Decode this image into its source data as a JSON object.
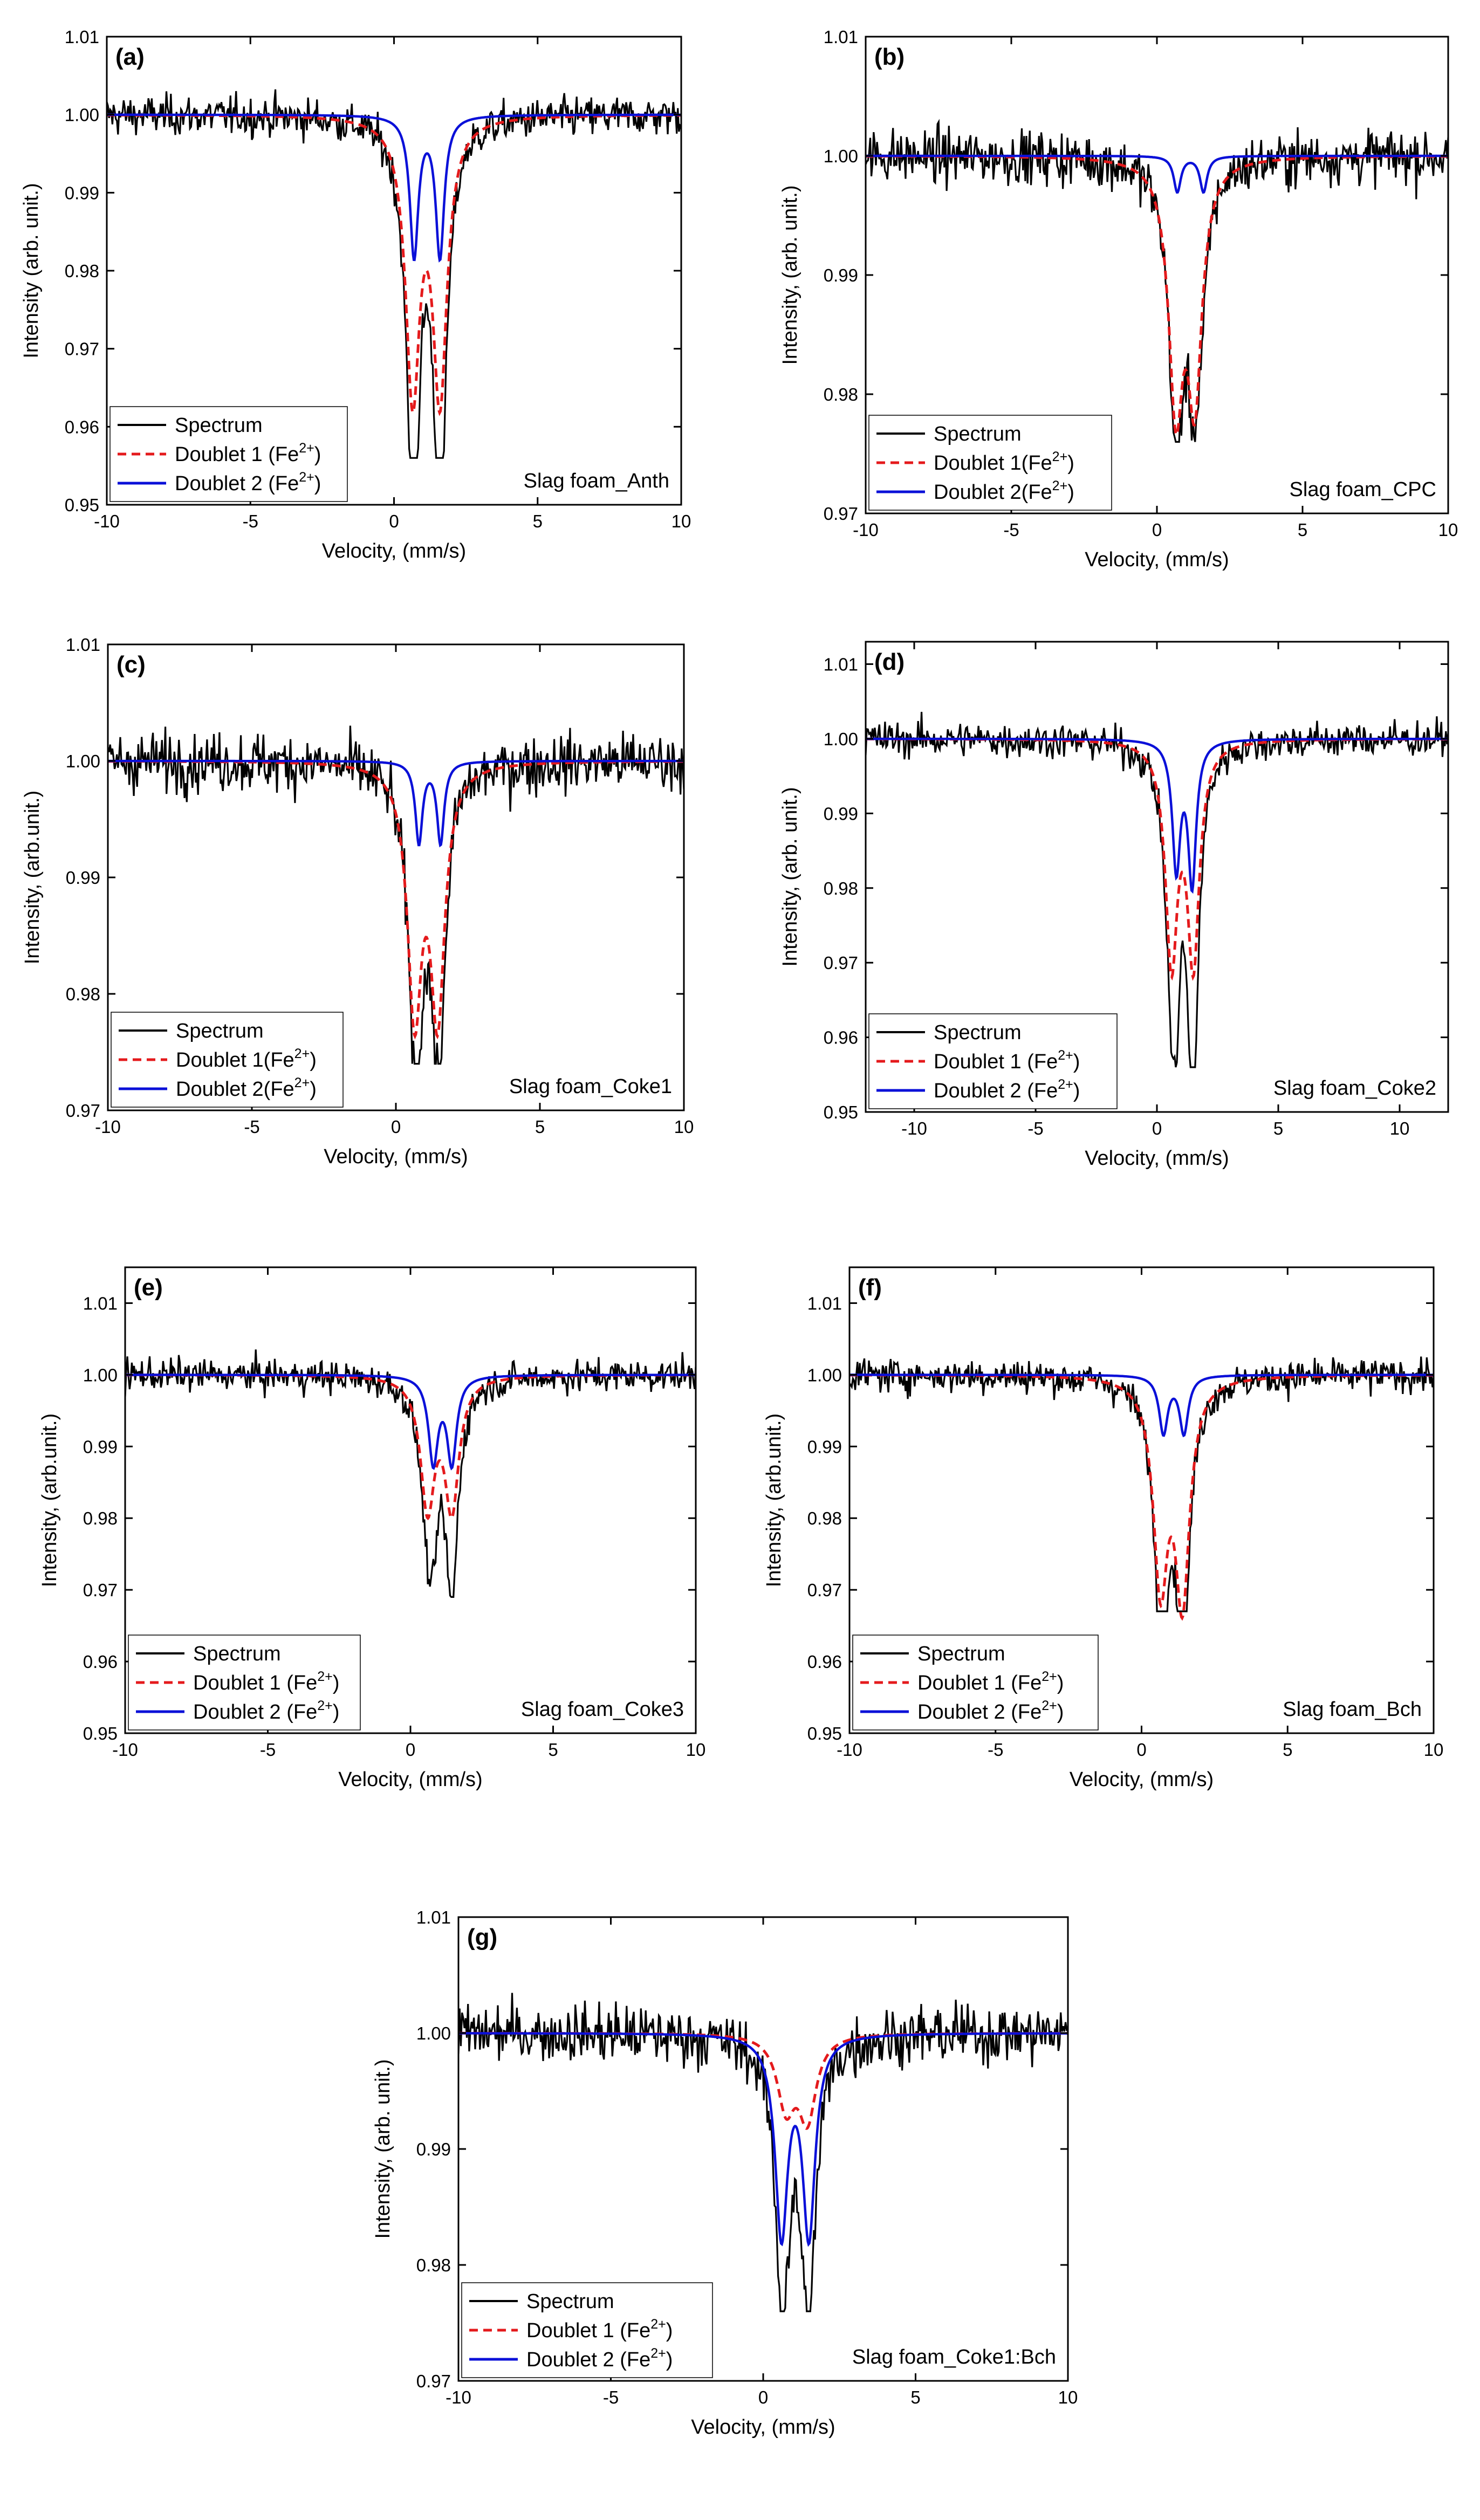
{
  "colors": {
    "spectrum": "#000000",
    "doublet1": "#e41a1c",
    "doublet2": "#0a10d8"
  },
  "chart_data": [
    {
      "panel": "(a)",
      "type": "line",
      "sample": "Slag foam_Anth",
      "xlabel": "Velocity, (mm/s)",
      "ylabel": "Intensity (arb. unit.)",
      "xlim": [
        -10,
        10
      ],
      "ylim": [
        0.95,
        1.01
      ],
      "xticks": [
        -10,
        -5,
        0,
        5,
        10
      ],
      "yticks": [
        0.95,
        0.96,
        0.97,
        0.98,
        0.99,
        1.0,
        1.01
      ],
      "ytick_labels": [
        "0.95",
        "0.96",
        "0.97",
        "0.98",
        "0.99",
        "1.00",
        "1.01"
      ],
      "legend": [
        {
          "key": "spectrum",
          "label": "Spectrum",
          "sup": ""
        },
        {
          "key": "doublet1",
          "label": "Doublet 1 (Fe",
          "sup": "2+",
          "tail": ")"
        },
        {
          "key": "doublet2",
          "label": "Doublet 2 (Fe",
          "sup": "2+",
          "tail": ")"
        }
      ],
      "series": [
        {
          "name": "Doublet 1 (Fe2+)",
          "lines": [
            {
              "center": 0.65,
              "depth": 0.035,
              "hwhm": 0.3
            },
            {
              "center": 1.6,
              "depth": 0.035,
              "hwhm": 0.3
            }
          ]
        },
        {
          "name": "Doublet 2 (Fe2+)",
          "lines": [
            {
              "center": 0.7,
              "depth": 0.018,
              "hwhm": 0.18
            },
            {
              "center": 1.6,
              "depth": 0.018,
              "hwhm": 0.18
            }
          ]
        },
        {
          "name": "Spectrum",
          "noise": 0.0018,
          "min_intensity": 0.956
        }
      ]
    },
    {
      "panel": "(b)",
      "type": "line",
      "sample": "Slag foam_CPC",
      "xlabel": "Velocity, (mm/s)",
      "ylabel": "Intensity, (arb. unit.)",
      "xlim": [
        -10,
        10
      ],
      "ylim": [
        0.97,
        1.01
      ],
      "xticks": [
        -10,
        -5,
        0,
        5,
        10
      ],
      "yticks": [
        0.97,
        0.98,
        0.99,
        1.0,
        1.01
      ],
      "ytick_labels": [
        "0.97",
        "0.98",
        "0.99",
        "1.00",
        "1.01"
      ],
      "legend": [
        {
          "key": "spectrum",
          "label": "Spectrum",
          "sup": ""
        },
        {
          "key": "doublet1",
          "label": "Doublet 1(Fe",
          "sup": "2+",
          "tail": ")"
        },
        {
          "key": "doublet2",
          "label": "Doublet 2(Fe",
          "sup": "2+",
          "tail": ")"
        }
      ],
      "series": [
        {
          "name": "Doublet 1 (Fe2+)",
          "lines": [
            {
              "center": 0.65,
              "depth": 0.02,
              "hwhm": 0.3
            },
            {
              "center": 1.3,
              "depth": 0.019,
              "hwhm": 0.3
            }
          ]
        },
        {
          "name": "Doublet 2 (Fe2+)",
          "lines": [
            {
              "center": 0.7,
              "depth": 0.003,
              "hwhm": 0.15
            },
            {
              "center": 1.6,
              "depth": 0.003,
              "hwhm": 0.15
            }
          ]
        },
        {
          "name": "Spectrum",
          "noise": 0.0016,
          "min_intensity": 0.976
        }
      ]
    },
    {
      "panel": "(c)",
      "type": "line",
      "sample": "Slag foam_Coke1",
      "xlabel": "Velocity, (mm/s)",
      "ylabel": "Intensity, (arb.unit.)",
      "xlim": [
        -10,
        10
      ],
      "ylim": [
        0.97,
        1.01
      ],
      "xticks": [
        -10,
        -5,
        0,
        5,
        10
      ],
      "yticks": [
        0.97,
        0.98,
        0.99,
        1.0,
        1.01
      ],
      "ytick_labels": [
        "0.97",
        "0.98",
        "0.99",
        "1.00",
        "1.01"
      ],
      "legend": [
        {
          "key": "spectrum",
          "label": "Spectrum",
          "sup": ""
        },
        {
          "key": "doublet1",
          "label": "Doublet 1(Fe",
          "sup": "2+",
          "tail": ")"
        },
        {
          "key": "doublet2",
          "label": "Doublet 2(Fe",
          "sup": "2+",
          "tail": ")"
        }
      ],
      "series": [
        {
          "name": "Doublet 1 (Fe2+)",
          "lines": [
            {
              "center": 0.65,
              "depth": 0.021,
              "hwhm": 0.3
            },
            {
              "center": 1.45,
              "depth": 0.021,
              "hwhm": 0.3
            }
          ]
        },
        {
          "name": "Doublet 2 (Fe2+)",
          "lines": [
            {
              "center": 0.8,
              "depth": 0.007,
              "hwhm": 0.15
            },
            {
              "center": 1.55,
              "depth": 0.007,
              "hwhm": 0.15
            }
          ]
        },
        {
          "name": "Spectrum",
          "noise": 0.0018,
          "min_intensity": 0.974
        }
      ]
    },
    {
      "panel": "(d)",
      "type": "line",
      "sample": "Slag foam_Coke2",
      "xlabel": "Velocity, (mm/s)",
      "ylabel": "Intensity, (arb. unit.)",
      "xlim": [
        -12,
        12
      ],
      "ylim": [
        0.95,
        1.013
      ],
      "xticks": [
        -10,
        -5,
        0,
        5,
        10
      ],
      "yticks": [
        0.95,
        0.96,
        0.97,
        0.98,
        0.99,
        1.0,
        1.01
      ],
      "ytick_labels": [
        "0.95",
        "0.96",
        "0.97",
        "0.98",
        "0.99",
        "1.00",
        "1.01"
      ],
      "legend": [
        {
          "key": "spectrum",
          "label": "Spectrum",
          "sup": ""
        },
        {
          "key": "doublet1",
          "label": "Doublet 1 (Fe",
          "sup": "2+",
          "tail": ")"
        },
        {
          "key": "doublet2",
          "label": "Doublet 2 (Fe",
          "sup": "2+",
          "tail": ")"
        }
      ],
      "series": [
        {
          "name": "Doublet 1 (Fe2+)",
          "lines": [
            {
              "center": 0.6,
              "depth": 0.029,
              "hwhm": 0.3
            },
            {
              "center": 1.5,
              "depth": 0.029,
              "hwhm": 0.3
            }
          ]
        },
        {
          "name": "Doublet 2 (Fe2+)",
          "lines": [
            {
              "center": 0.8,
              "depth": 0.017,
              "hwhm": 0.2
            },
            {
              "center": 1.45,
              "depth": 0.019,
              "hwhm": 0.2
            }
          ]
        },
        {
          "name": "Spectrum",
          "noise": 0.0017,
          "min_intensity": 0.956
        }
      ]
    },
    {
      "panel": "(e)",
      "type": "line",
      "sample": "Slag foam_Coke3",
      "xlabel": "Velocity, (mm/s)",
      "ylabel": "Intensity, (arb.unit.)",
      "xlim": [
        -10,
        10
      ],
      "ylim": [
        0.95,
        1.015
      ],
      "xticks": [
        -10,
        -5,
        0,
        5,
        10
      ],
      "yticks": [
        0.95,
        0.96,
        0.97,
        0.98,
        0.99,
        1.0,
        1.01
      ],
      "ytick_labels": [
        "0.95",
        "0.96",
        "0.97",
        "0.98",
        "0.99",
        "1.00",
        "1.01"
      ],
      "legend": [
        {
          "key": "spectrum",
          "label": "Spectrum",
          "sup": ""
        },
        {
          "key": "doublet1",
          "label": "Doublet 1 (Fe",
          "sup": "2+",
          "tail": ")"
        },
        {
          "key": "doublet2",
          "label": "Doublet 2 (Fe",
          "sup": "2+",
          "tail": ")"
        }
      ],
      "series": [
        {
          "name": "Doublet 1 (Fe2+)",
          "lines": [
            {
              "center": 0.6,
              "depth": 0.018,
              "hwhm": 0.3
            },
            {
              "center": 1.45,
              "depth": 0.018,
              "hwhm": 0.3
            }
          ]
        },
        {
          "name": "Doublet 2 (Fe2+)",
          "lines": [
            {
              "center": 0.8,
              "depth": 0.012,
              "hwhm": 0.2
            },
            {
              "center": 1.45,
              "depth": 0.012,
              "hwhm": 0.2
            }
          ]
        },
        {
          "name": "Spectrum",
          "noise": 0.0016,
          "min_intensity": 0.969
        }
      ]
    },
    {
      "panel": "(f)",
      "type": "line",
      "sample": "Slag foam_Bch",
      "xlabel": "Velocity, (mm/s)",
      "ylabel": "Intensity, (arb.unit.)",
      "xlim": [
        -10,
        10
      ],
      "ylim": [
        0.95,
        1.015
      ],
      "xticks": [
        -10,
        -5,
        0,
        5,
        10
      ],
      "yticks": [
        0.95,
        0.96,
        0.97,
        0.98,
        0.99,
        1.0,
        1.01
      ],
      "ytick_labels": [
        "0.95",
        "0.96",
        "0.97",
        "0.98",
        "0.99",
        "1.00",
        "1.01"
      ],
      "legend": [
        {
          "key": "spectrum",
          "label": "Spectrum",
          "sup": ""
        },
        {
          "key": "doublet1",
          "label": "Doublet 1 (Fe",
          "sup": "2+",
          "tail": ")"
        },
        {
          "key": "doublet2",
          "label": "Doublet 2 (Fe",
          "sup": "2+",
          "tail": ")"
        }
      ],
      "series": [
        {
          "name": "Doublet 1 (Fe2+)",
          "lines": [
            {
              "center": 0.65,
              "depth": 0.028,
              "hwhm": 0.3
            },
            {
              "center": 1.4,
              "depth": 0.03,
              "hwhm": 0.3
            }
          ]
        },
        {
          "name": "Doublet 2 (Fe2+)",
          "lines": [
            {
              "center": 0.75,
              "depth": 0.008,
              "hwhm": 0.18
            },
            {
              "center": 1.45,
              "depth": 0.008,
              "hwhm": 0.18
            }
          ]
        },
        {
          "name": "Spectrum",
          "noise": 0.0017,
          "min_intensity": 0.967
        }
      ]
    },
    {
      "panel": "(g)",
      "type": "line",
      "sample": "Slag foam_Coke1:Bch",
      "xlabel": "Velocity, (mm/s)",
      "ylabel": "Intensity, (arb. unit.)",
      "xlim": [
        -10,
        10
      ],
      "ylim": [
        0.97,
        1.01
      ],
      "xticks": [
        -10,
        -5,
        0,
        5,
        10
      ],
      "yticks": [
        0.97,
        0.98,
        0.99,
        1.0,
        1.01
      ],
      "ytick_labels": [
        "0.97",
        "0.98",
        "0.99",
        "1.00",
        "1.01"
      ],
      "legend": [
        {
          "key": "spectrum",
          "label": "Spectrum",
          "sup": ""
        },
        {
          "key": "doublet1",
          "label": "Doublet 1 (Fe",
          "sup": "2+",
          "tail": ")"
        },
        {
          "key": "doublet2",
          "label": "Doublet 2 (Fe",
          "sup": "2+",
          "tail": ")"
        }
      ],
      "series": [
        {
          "name": "Doublet 1 (Fe2+)",
          "lines": [
            {
              "center": 0.75,
              "depth": 0.006,
              "hwhm": 0.35
            },
            {
              "center": 1.45,
              "depth": 0.007,
              "hwhm": 0.35
            }
          ]
        },
        {
          "name": "Doublet 2 (Fe2+)",
          "lines": [
            {
              "center": 0.6,
              "depth": 0.017,
              "hwhm": 0.25
            },
            {
              "center": 1.5,
              "depth": 0.017,
              "hwhm": 0.25
            }
          ]
        },
        {
          "name": "Spectrum",
          "noise": 0.0018,
          "min_intensity": 0.976
        }
      ]
    }
  ]
}
